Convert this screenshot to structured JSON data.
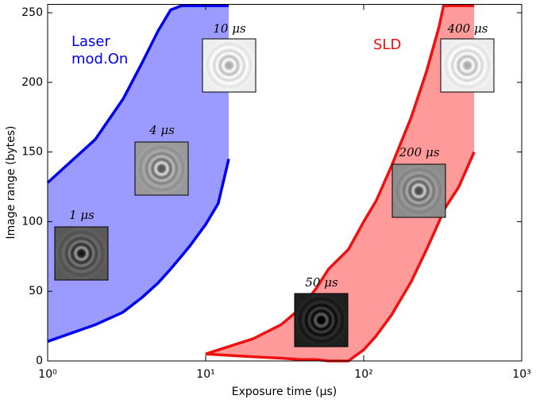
{
  "chart_data": {
    "type": "band",
    "xlabel": "Exposure time (μs)",
    "ylabel": "Image range (bytes)",
    "xscale": "log",
    "xlim": [
      1,
      1000
    ],
    "ylim": [
      0,
      256
    ],
    "xticks": [
      {
        "value": 1,
        "label": "10⁰"
      },
      {
        "value": 10,
        "label": "10¹"
      },
      {
        "value": 100,
        "label": "10²"
      },
      {
        "value": 1000,
        "label": "10³"
      }
    ],
    "yticks": [
      0,
      50,
      100,
      150,
      200,
      250
    ],
    "series": [
      {
        "name": "Laser mod.On",
        "color": "#0000ee",
        "fill": "#9a9aff",
        "x": [
          1,
          2,
          3,
          4,
          5,
          6,
          7,
          8,
          10,
          12,
          14
        ],
        "upper": [
          128,
          159,
          188,
          215,
          237,
          252,
          255,
          255,
          255,
          255,
          255
        ],
        "lower": [
          14,
          26,
          35,
          46,
          56,
          66,
          75,
          83,
          98,
          113,
          145
        ]
      },
      {
        "name": "SLD",
        "color": "#ee1111",
        "fill": "#ff9a9a",
        "x": [
          10,
          20,
          30,
          40,
          50,
          60,
          80,
          100,
          120,
          150,
          200,
          250,
          300,
          320,
          400,
          500
        ],
        "upper": [
          5,
          16,
          26,
          38,
          52,
          66,
          80,
          100,
          115,
          140,
          175,
          208,
          240,
          255,
          255,
          255
        ],
        "lower": [
          5,
          3,
          2,
          1,
          1,
          0,
          0,
          8,
          18,
          33,
          57,
          80,
          100,
          108,
          125,
          150
        ]
      }
    ],
    "insets": [
      {
        "label": "1 μs"
      },
      {
        "label": "4 μs"
      },
      {
        "label": "10 μs"
      },
      {
        "label": "50 μs"
      },
      {
        "label": "200 μs"
      },
      {
        "label": "400 μs"
      }
    ]
  }
}
